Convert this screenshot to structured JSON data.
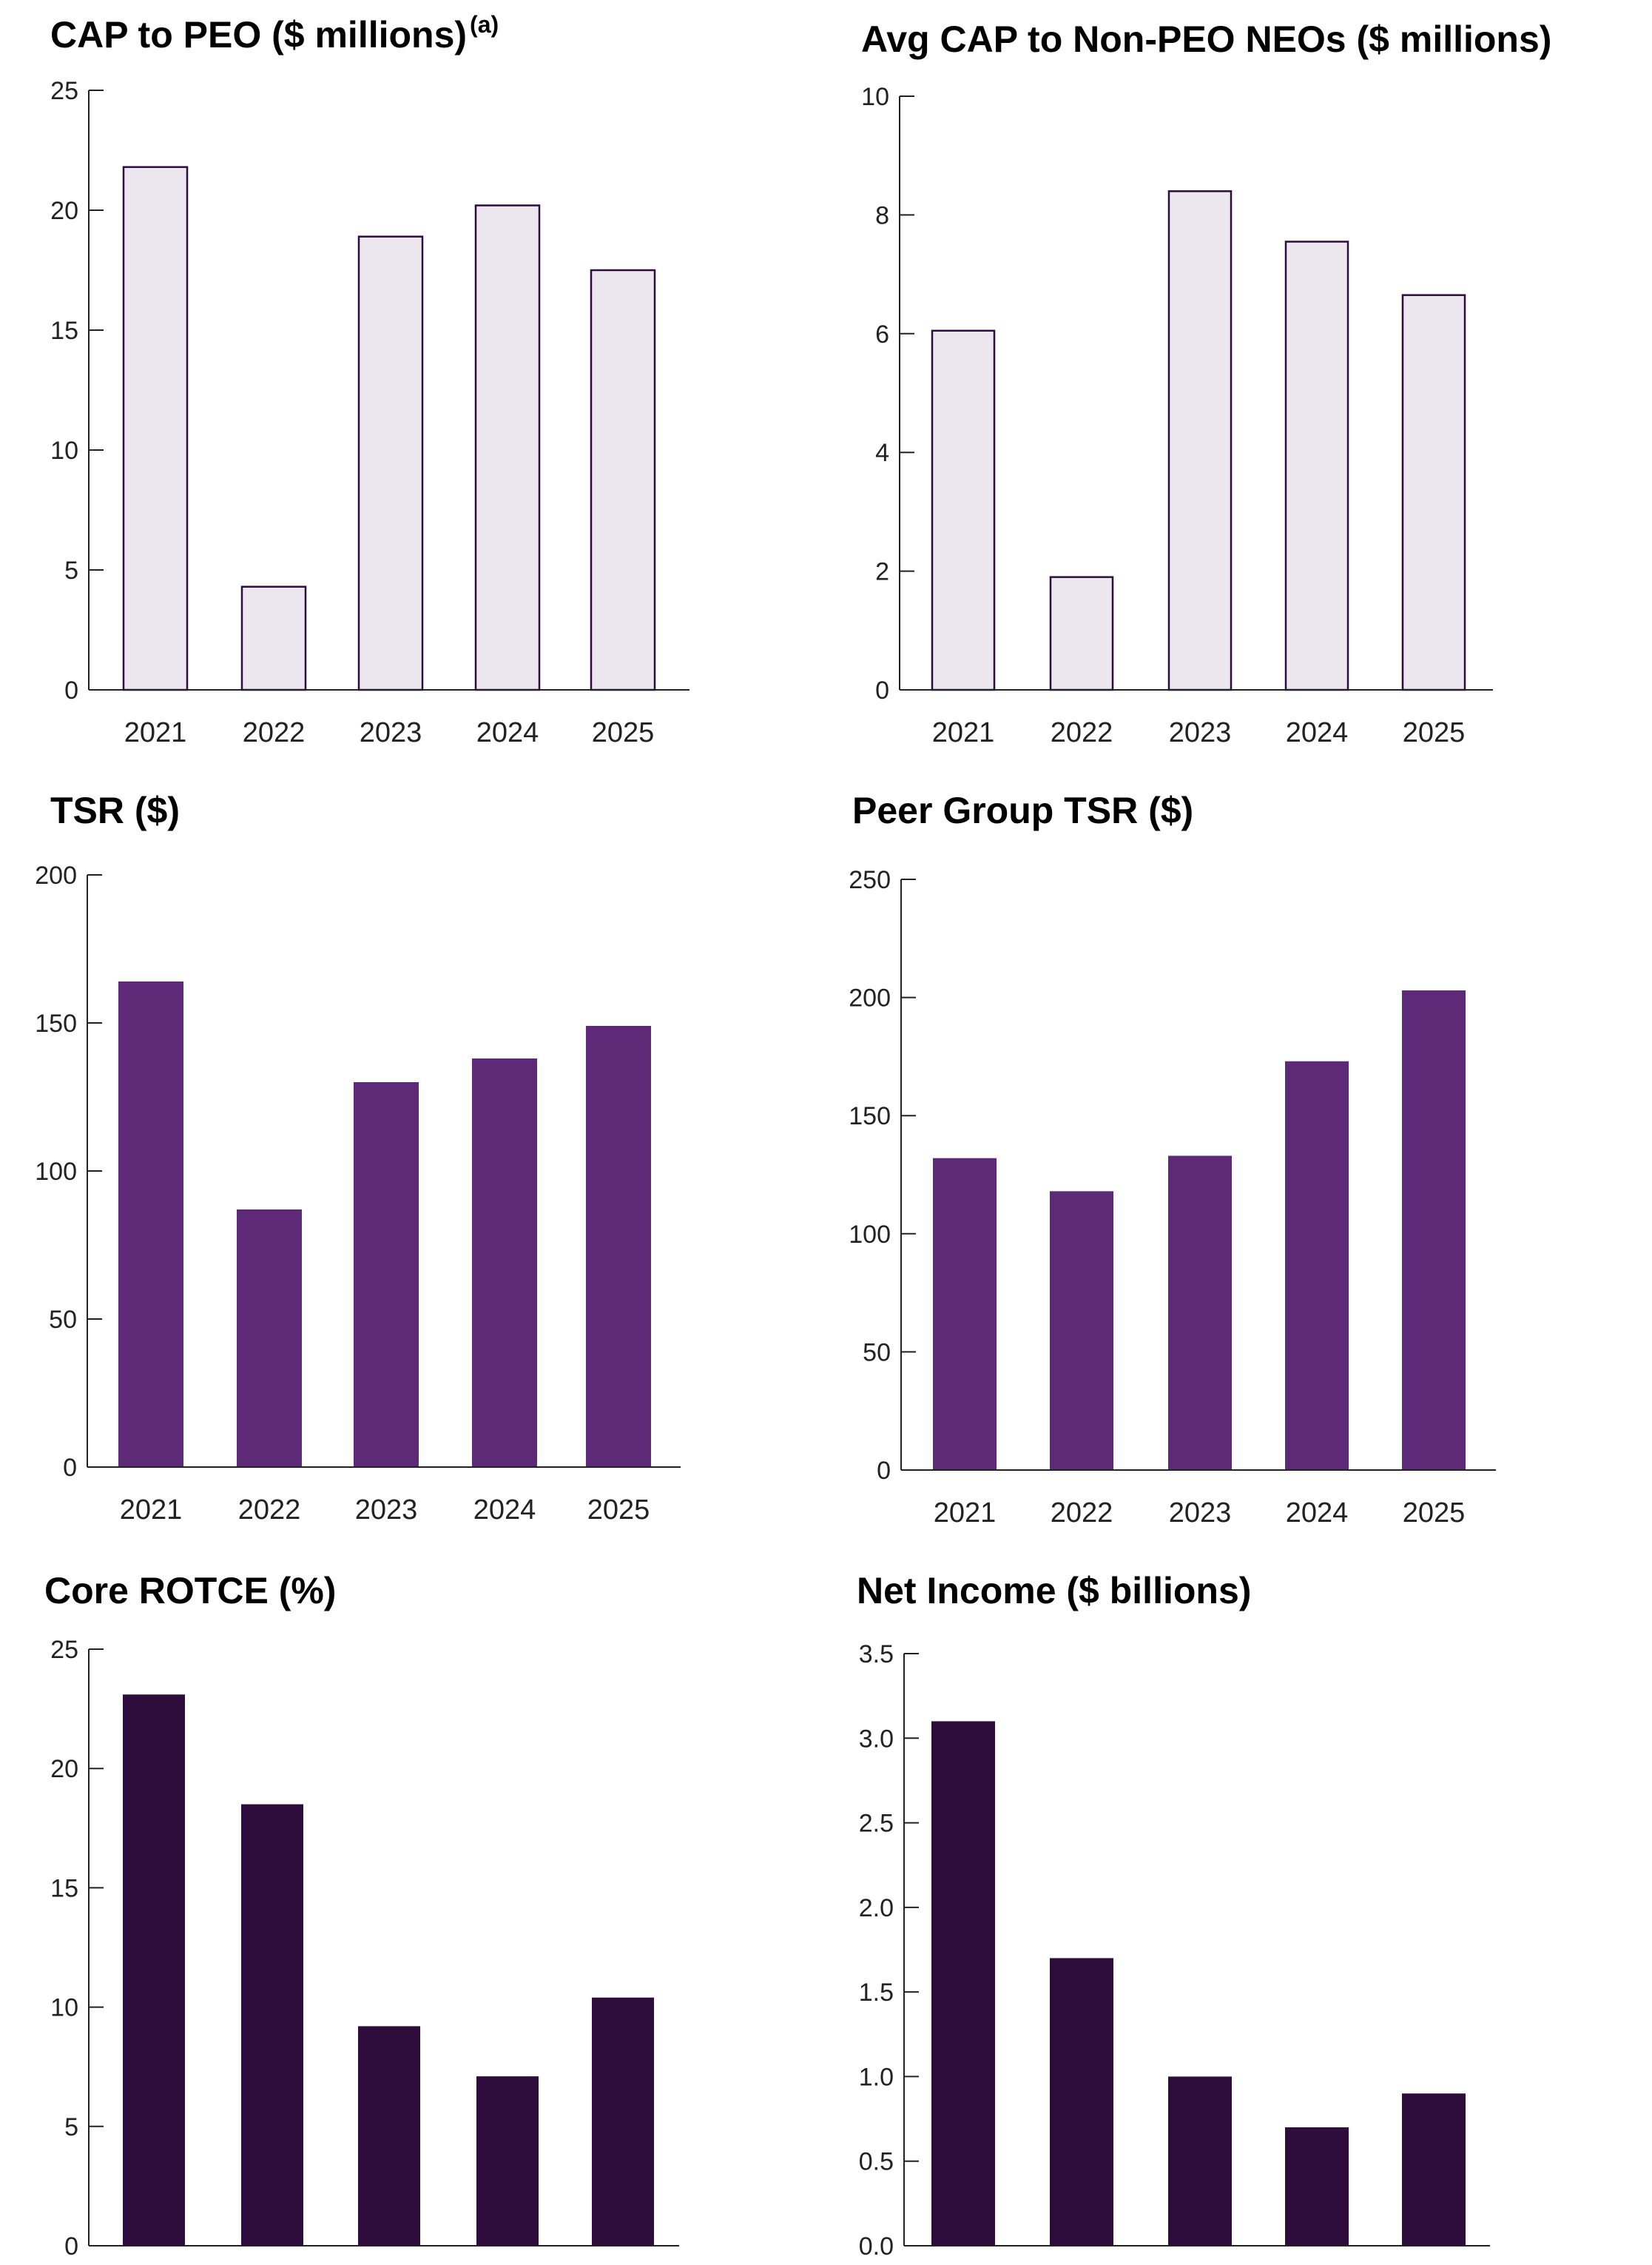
{
  "chart_data": [
    {
      "type": "bar",
      "title": "CAP to PEO ($ millions)",
      "title_superscript": "(a)",
      "categories": [
        "2021",
        "2022",
        "2023",
        "2024",
        "2025"
      ],
      "values": [
        21.8,
        4.3,
        18.9,
        20.2,
        17.5
      ],
      "ylim": [
        0,
        25
      ],
      "yticks": [
        "0",
        "5",
        "10",
        "15",
        "20",
        "25"
      ],
      "xlabel": "",
      "ylabel": "",
      "bar_style": "outline",
      "fill_color": "#ece6ee",
      "stroke_color": "#2e0c3c"
    },
    {
      "type": "bar",
      "title": "Avg CAP to Non-PEO NEOs ($ millions)",
      "categories": [
        "2021",
        "2022",
        "2023",
        "2024",
        "2025"
      ],
      "values": [
        6.05,
        1.9,
        8.4,
        7.55,
        6.65
      ],
      "ylim": [
        0,
        10
      ],
      "yticks": [
        "0",
        "2",
        "4",
        "6",
        "8",
        "10"
      ],
      "xlabel": "",
      "ylabel": "",
      "bar_style": "outline",
      "fill_color": "#ece6ee",
      "stroke_color": "#2e0c3c"
    },
    {
      "type": "bar",
      "title": "TSR ($)",
      "categories": [
        "2021",
        "2022",
        "2023",
        "2024",
        "2025"
      ],
      "values": [
        164,
        87,
        130,
        138,
        149
      ],
      "ylim": [
        0,
        200
      ],
      "yticks": [
        "0",
        "50",
        "100",
        "150",
        "200"
      ],
      "xlabel": "",
      "ylabel": "",
      "bar_style": "solid",
      "fill_color": "#5e2a78",
      "stroke_color": "#5e2a78"
    },
    {
      "type": "bar",
      "title": "Peer Group TSR ($)",
      "categories": [
        "2021",
        "2022",
        "2023",
        "2024",
        "2025"
      ],
      "values": [
        132,
        118,
        133,
        173,
        203
      ],
      "ylim": [
        0,
        250
      ],
      "yticks": [
        "0",
        "50",
        "100",
        "150",
        "200",
        "250"
      ],
      "xlabel": "",
      "ylabel": "",
      "bar_style": "solid",
      "fill_color": "#5e2a78",
      "stroke_color": "#5e2a78"
    },
    {
      "type": "bar",
      "title": "Core ROTCE (%)",
      "categories": [
        "2021",
        "2022",
        "2023",
        "2024",
        "2025"
      ],
      "values": [
        23.1,
        18.5,
        9.2,
        7.1,
        10.4
      ],
      "ylim": [
        0,
        25
      ],
      "yticks": [
        "0",
        "5",
        "10",
        "15",
        "20",
        "25"
      ],
      "xlabel": "",
      "ylabel": "",
      "bar_style": "solid",
      "fill_color": "#2e0c3c",
      "stroke_color": "#2e0c3c"
    },
    {
      "type": "bar",
      "title": "Net Income ($ billions)",
      "categories": [
        "2021",
        "2022",
        "2023",
        "2024",
        "2025"
      ],
      "values": [
        3.1,
        1.7,
        1.0,
        0.7,
        0.9
      ],
      "ylim": [
        0,
        3.5
      ],
      "yticks": [
        "0.0",
        "0.5",
        "1.0",
        "1.5",
        "2.0",
        "2.5",
        "3.0",
        "3.5"
      ],
      "xlabel": "",
      "ylabel": "",
      "bar_style": "solid",
      "fill_color": "#2e0c3c",
      "stroke_color": "#2e0c3c"
    }
  ]
}
